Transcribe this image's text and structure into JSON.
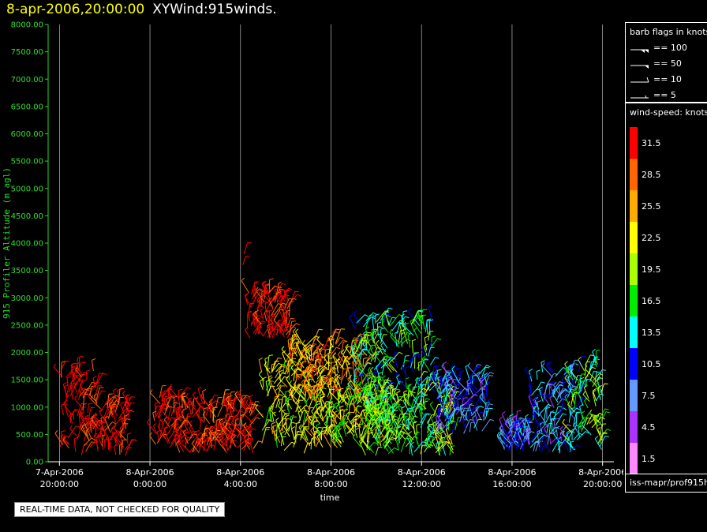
{
  "header": {
    "time": "8-apr-2006,20:00:00",
    "plot_title": "XYWind:915winds."
  },
  "chart_data": {
    "type": "scatter",
    "ylabel": "915 Profiler Altitude (m agl)",
    "xlabel": "time",
    "ylim": [
      0,
      8000
    ],
    "xlim_hours": [
      -0.5,
      24.5
    ],
    "y_ticks": [
      "0.00",
      "500.00",
      "1000.00",
      "1500.00",
      "2000.00",
      "2500.00",
      "3000.00",
      "3500.00",
      "4000.00",
      "4500.00",
      "5000.00",
      "5500.00",
      "6000.00",
      "6500.00",
      "7000.00",
      "7500.00",
      "8000.00"
    ],
    "x_ticks": [
      {
        "hours": 0,
        "date": "7-Apr-2006",
        "time": "20:00:00"
      },
      {
        "hours": 4,
        "date": "8-Apr-2006",
        "time": "0:00:00"
      },
      {
        "hours": 8,
        "date": "8-Apr-2006",
        "time": "4:00:00"
      },
      {
        "hours": 12,
        "date": "8-Apr-2006",
        "time": "8:00:00"
      },
      {
        "hours": 16,
        "date": "8-Apr-2006",
        "time": "12:00:00"
      },
      {
        "hours": 20,
        "date": "8-Apr-2006",
        "time": "16:00:00"
      },
      {
        "hours": 24,
        "date": "8-Apr-2006",
        "time": "20:00:00"
      }
    ],
    "grid": "vertical lines at major time ticks",
    "wind_clusters": [
      {
        "t_start": 0.0,
        "t_end": 1.6,
        "alt_min": 100,
        "alt_max": 1700,
        "speed": 33
      },
      {
        "t_start": 1.6,
        "t_end": 3.1,
        "alt_min": 100,
        "alt_max": 1150,
        "speed": 32
      },
      {
        "t_start": 4.2,
        "t_end": 5.3,
        "alt_min": 250,
        "alt_max": 1200,
        "speed": 32
      },
      {
        "t_start": 5.3,
        "t_end": 8.6,
        "alt_min": 150,
        "alt_max": 1100,
        "speed": 31
      },
      {
        "t_start": 8.3,
        "t_end": 10.2,
        "alt_min": 2250,
        "alt_max": 3100,
        "speed": 32
      },
      {
        "t_start": 8.9,
        "t_end": 11.5,
        "alt_min": 150,
        "alt_max": 1700,
        "speed": 22
      },
      {
        "t_start": 10.0,
        "t_end": 13.5,
        "alt_min": 1100,
        "alt_max": 2200,
        "speed": 26
      },
      {
        "t_start": 11.5,
        "t_end": 14.5,
        "alt_min": 250,
        "alt_max": 1200,
        "speed": 21
      },
      {
        "t_start": 13.0,
        "t_end": 16.5,
        "alt_min": 900,
        "alt_max": 2600,
        "speed": 16
      },
      {
        "t_start": 13.5,
        "t_end": 17.5,
        "alt_min": 100,
        "alt_max": 1300,
        "speed": 18
      },
      {
        "t_start": 16.5,
        "t_end": 18.9,
        "alt_min": 500,
        "alt_max": 1600,
        "speed": 9
      },
      {
        "t_start": 19.6,
        "t_end": 20.8,
        "alt_min": 200,
        "alt_max": 650,
        "speed": 8
      },
      {
        "t_start": 20.8,
        "t_end": 23.0,
        "alt_min": 150,
        "alt_max": 1650,
        "speed": 10
      },
      {
        "t_start": 22.5,
        "t_end": 24.0,
        "alt_min": 200,
        "alt_max": 1800,
        "speed": 17
      }
    ],
    "isolated_barbs": [
      {
        "hours": 8.1,
        "alt": 3600,
        "speed": 32
      },
      {
        "hours": 8.15,
        "alt": 3800,
        "speed": 32
      }
    ]
  },
  "barb_legend": {
    "title": "barb flags in knots",
    "entries": [
      "== 100",
      "== 50",
      "== 10",
      "== 5"
    ]
  },
  "speed_legend": {
    "title": "wind-speed: knots",
    "bins": [
      {
        "label": "31.5",
        "color": "#ff0000"
      },
      {
        "label": "28.5",
        "color": "#ff6600"
      },
      {
        "label": "25.5",
        "color": "#ffaa00"
      },
      {
        "label": "22.5",
        "color": "#ffff00"
      },
      {
        "label": "19.5",
        "color": "#aaff00"
      },
      {
        "label": "16.5",
        "color": "#00ee00"
      },
      {
        "label": "13.5",
        "color": "#00ffff"
      },
      {
        "label": "10.5",
        "color": "#0000ff"
      },
      {
        "label": "7.5",
        "color": "#6699ff"
      },
      {
        "label": "4.5",
        "color": "#aa33ff"
      },
      {
        "label": "1.5",
        "color": "#ff88ff"
      }
    ]
  },
  "path_label": "iss-mapr/prof915h",
  "qc_note": "REAL-TIME DATA, NOT CHECKED FOR QUALITY"
}
